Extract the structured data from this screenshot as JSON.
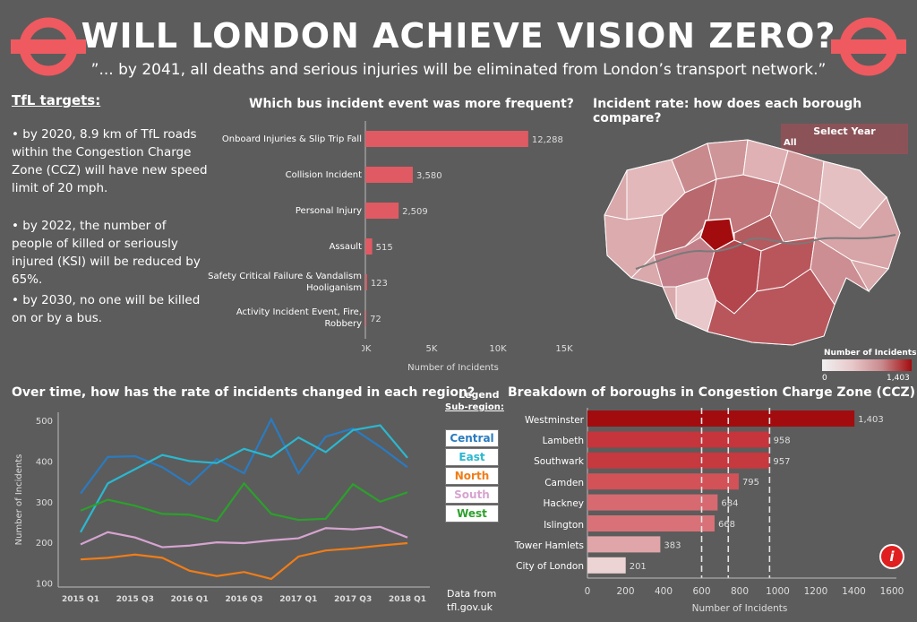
{
  "header": {
    "title": "WILL LONDON ACHIEVE VISION ZERO?",
    "subtitle": "”... by 2041, all deaths and serious injuries will be eliminated from London’s transport network.”"
  },
  "targets": {
    "title": "TfL targets:",
    "items": [
      "• by 2020, 8.9 km of TfL roads within the Congestion Charge Zone (CCZ) will have new speed limit of 20 mph.",
      "• by 2022, the number of people of killed or seriously injured (KSI) will be reduced by 65%.",
      "• by 2030, no one will be killed on or by a bus."
    ]
  },
  "bus_chart_title": "Which bus incident event was more frequent?",
  "map": {
    "title": "Incident rate: how does each borough compare?",
    "select_label": "Select Year",
    "select_value": "All",
    "legend_title": "Number of Incidents",
    "legend_min": "0",
    "legend_max": "1,403"
  },
  "line_chart_title": "Over time, how has the rate of incidents changed in each region?",
  "legend": {
    "title": "Legend",
    "subtitle": "Sub-region:",
    "items": [
      {
        "label": "Central",
        "color": "#2a7bc0"
      },
      {
        "label": "East",
        "color": "#2ab8d0"
      },
      {
        "label": "North",
        "color": "#f07d18"
      },
      {
        "label": "South",
        "color": "#d6a4d0"
      },
      {
        "label": "West",
        "color": "#2ca02c"
      }
    ]
  },
  "source_note": "Data from tfl.gov.uk",
  "ccz_chart_title": "Breakdown of boroughs in Congestion Charge Zone (CCZ)",
  "info_icon": "info-icon",
  "colors": {
    "bar": "#e05a63",
    "map_dark": "#a30c0f",
    "roundel": "#ee5a5f"
  },
  "chart_data": [
    {
      "type": "bar",
      "orientation": "horizontal",
      "categories": [
        "Onboard Injuries & Slip Trip Fall",
        "Collision Incident",
        "Personal Injury",
        "Assault",
        "Safety Critical Failure & Vandalism Hooliganism",
        "Activity Incident Event, Fire, Robbery"
      ],
      "values": [
        12288,
        3580,
        2509,
        515,
        123,
        72
      ],
      "value_labels": [
        "12,288",
        "3,580",
        "2,509",
        "515",
        "123",
        "72"
      ],
      "xlabel": "Number of Incidents",
      "xlim": [
        0,
        15000
      ],
      "ticks": [
        "0K",
        "5K",
        "10K",
        "15K"
      ]
    },
    {
      "type": "line",
      "x": [
        "2015 Q1",
        "2015 Q2",
        "2015 Q3",
        "2015 Q4",
        "2016 Q1",
        "2016 Q2",
        "2016 Q3",
        "2016 Q4",
        "2017 Q1",
        "2017 Q2",
        "2017 Q3",
        "2017 Q4",
        "2018 Q1"
      ],
      "xticks": [
        "2015 Q1",
        "2015 Q3",
        "2016 Q1",
        "2016 Q3",
        "2017 Q1",
        "2017 Q3",
        "2018 Q1"
      ],
      "ylabel": "Number of Incidents",
      "ylim": [
        90,
        520
      ],
      "yticks": [
        100,
        200,
        300,
        400,
        500
      ],
      "series": [
        {
          "name": "Central",
          "values": [
            320,
            410,
            412,
            385,
            342,
            405,
            370,
            503,
            370,
            460,
            480,
            435,
            385
          ]
        },
        {
          "name": "East",
          "values": [
            225,
            345,
            380,
            415,
            400,
            395,
            430,
            410,
            458,
            422,
            476,
            488,
            408
          ]
        },
        {
          "name": "North",
          "values": [
            158,
            162,
            170,
            162,
            130,
            117,
            127,
            110,
            165,
            180,
            185,
            192,
            198
          ]
        },
        {
          "name": "South",
          "values": [
            195,
            225,
            212,
            188,
            192,
            200,
            198,
            205,
            210,
            235,
            232,
            238,
            212
          ]
        },
        {
          "name": "West",
          "values": [
            278,
            305,
            290,
            270,
            268,
            252,
            345,
            270,
            255,
            258,
            343,
            300,
            323
          ]
        }
      ]
    },
    {
      "type": "bar",
      "orientation": "horizontal",
      "categories": [
        "Westminster",
        "Lambeth",
        "Southwark",
        "Camden",
        "Hackney",
        "Islington",
        "Tower Hamlets",
        "City of London"
      ],
      "values": [
        1403,
        958,
        957,
        795,
        684,
        668,
        383,
        201
      ],
      "value_labels": [
        "1,403",
        "958",
        "957",
        "795",
        "684",
        "668",
        "383",
        "201"
      ],
      "xlabel": "Number of Incidents",
      "xlim": [
        0,
        1600
      ],
      "ticks": [
        0,
        200,
        400,
        600,
        800,
        1000,
        1200,
        1400,
        1600
      ],
      "reference_lines": [
        600,
        740,
        957
      ]
    }
  ]
}
